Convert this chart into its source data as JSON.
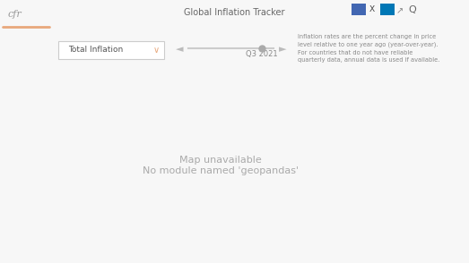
{
  "title": "Global Inflation Tracker",
  "logo_text": "cfr",
  "dropdown_label": "Total Inflation",
  "slider_label": "Q3 2021",
  "description": "Inflation rates are the percent change in price\nlevel relative to one year ago (year-over-year).\nFor countries that do not have reliable\nquarterly data, annual data is used if available.",
  "bg_color": "#f7f7f7",
  "header_bg": "#ffffff",
  "header_border": "#e8a87c",
  "ocean_color": "#eef3f3",
  "color_palette": [
    "#c8d8d8",
    "#a8c8c0",
    "#8ab8b0",
    "#6aaba0",
    "#4a9590",
    "#3d8c85",
    "#2a7570",
    "#1a6b66",
    "#0d5555",
    "#0d4a4a",
    "#082e2e"
  ],
  "special_countries": {
    "Venezuela": "#d4956a",
    "Zimbabwe": "#082e2e",
    "Turkey": "#082e2e",
    "Lebanon": "#082e2e",
    "Argentina": "#0d4a4a",
    "Iran": "#0d5555",
    "Sudan": "#082e2e",
    "Ethiopia": "#1a6b66",
    "Ghana": "#1a6b66",
    "Egypt": "#2a7570",
    "Nigeria": "#3d8c85",
    "Brazil": "#4a9590",
    "United States of America": "#6aaba0",
    "China": "#c8d8d8",
    "Russia": "#8ab8b0",
    "Germany": "#a8c8c0",
    "France": "#a8c8c0",
    "United Kingdom": "#a8c8c0",
    "Japan": "#c8d8d8",
    "India": "#6aaba0",
    "Australia": "#c8d8d8",
    "Canada": "#c8d8d8",
    "Mexico": "#6aaba0",
    "South Africa": "#4a9590",
    "Saudi Arabia": "#3d8c85",
    "Indonesia": "#6aaba0",
    "Colombia": "#4a9590",
    "Chile": "#2a7570",
    "Peru": "#3d8c85",
    "Pakistan": "#4a9590",
    "Bangladesh": "#4a9590",
    "Ukraine": "#3d8c85",
    "Poland": "#8ab8b0",
    "Spain": "#a8c8c0",
    "Italy": "#a8c8c0",
    "Kazakhstan": "#8ab8b0",
    "Myanmar": "#6aaba0",
    "Somalia": "#082e2e",
    "Libya": "#1a6b66",
    "Angola": "#2a7570",
    "Mozambique": "#1a6b66",
    "Tanzania": "#2a7570",
    "Kenya": "#3d8c85",
    "Dem. Rep. Congo": "#1a6b66",
    "Mali": "#2a7570",
    "Cameroon": "#3d8c85",
    "Morocco": "#6aaba0",
    "Algeria": "#4a9590",
    "Tunisia": "#6aaba0",
    "Sweden": "#c8d8d8",
    "Norway": "#c8d8d8",
    "Switzerland": "#c8d8d8",
    "Iraq": "#3d8c85",
    "Syria": "#082e2e",
    "Yemen": "#0d4a4a",
    "Afghanistan": "#0d5555",
    "Bolivia": "#3d8c85",
    "Ecuador": "#4a9590",
    "Paraguay": "#6aaba0",
    "Uruguay": "#2a7570",
    "Cuba": "#1a6b66",
    "Haiti": "#0d4a4a",
    "Eritrea": "#082e2e",
    "Zambia": "#1a6b66",
    "Malawi": "#2a7570",
    "Madagascar": "#3d8c85",
    "Senegal": "#4a9590",
    "Ivory Coast": "#4a9590",
    "Guinea": "#3d8c85",
    "Uganda": "#3d8c85",
    "Rwanda": "#4a9590",
    "Burundi": "#1a6b66",
    "South Sudan": "#082e2e",
    "Central African Rep.": "#0d4a4a",
    "Chad": "#2a7570",
    "Niger": "#3d8c85",
    "Burkina Faso": "#3d8c85",
    "Togo": "#4a9590",
    "Benin": "#4a9590",
    "Namibia": "#6aaba0",
    "Botswana": "#6aaba0",
    "Eswatini": "#6aaba0",
    "Lesotho": "#6aaba0",
    "Gabon": "#4a9590",
    "Republic of the Congo": "#3d8c85",
    "Eq. Guinea": "#4a9590",
    "Djibouti": "#4a9590",
    "Sierra Leone": "#1a6b66",
    "Liberia": "#2a7570",
    "Gambia": "#3d8c85",
    "Guinea-Bissau": "#3d8c85",
    "Cape Verde": "#6aaba0",
    "Mauritania": "#4a9590",
    "Western Sahara": "#c8d8d8",
    "Jordan": "#6aaba0",
    "Israel": "#8ab8b0",
    "Palestine": "#6aaba0",
    "Cyprus": "#a8c8c0",
    "Greece": "#a8c8c0",
    "Portugal": "#a8c8c0",
    "Netherlands": "#c8d8d8",
    "Belgium": "#c8d8d8",
    "Austria": "#c8d8d8",
    "Hungary": "#8ab8b0",
    "Czech Rep.": "#8ab8b0",
    "Slovakia": "#8ab8b0",
    "Romania": "#6aaba0",
    "Bulgaria": "#6aaba0",
    "Serbia": "#6aaba0",
    "Croatia": "#8ab8b0",
    "Bosnia and Herz.": "#6aaba0",
    "Albania": "#6aaba0",
    "North Macedonia": "#6aaba0",
    "Montenegro": "#8ab8b0",
    "Kosovo": "#6aaba0",
    "Slovenia": "#a8c8c0",
    "Estonia": "#8ab8b0",
    "Latvia": "#8ab8b0",
    "Lithuania": "#8ab8b0",
    "Belarus": "#4a9590",
    "Moldova": "#4a9590",
    "Georgia": "#4a9590",
    "Armenia": "#4a9590",
    "Azerbaijan": "#3d8c85",
    "Uzbekistan": "#4a9590",
    "Turkmenistan": "#3d8c85",
    "Kyrgyzstan": "#3d8c85",
    "Tajikistan": "#2a7570",
    "Mongolia": "#c8d8d8",
    "North Korea": "#c8d8d8",
    "South Korea": "#c8d8d8",
    "Vietnam": "#4a9590",
    "Thailand": "#6aaba0",
    "Cambodia": "#6aaba0",
    "Laos": "#4a9590",
    "Philippines": "#4a9590",
    "Malaysia": "#6aaba0",
    "Sri Lanka": "#082e2e",
    "Nepal": "#3d8c85",
    "Bhutan": "#6aaba0",
    "Papua New Guinea": "#3d8c85",
    "New Zealand": "#c8d8d8",
    "Finland": "#c8d8d8",
    "Denmark": "#c8d8d8",
    "Ireland": "#c8d8d8",
    "Luxembourg": "#c8d8d8"
  },
  "figsize": [
    5.23,
    2.94
  ],
  "dpi": 100
}
